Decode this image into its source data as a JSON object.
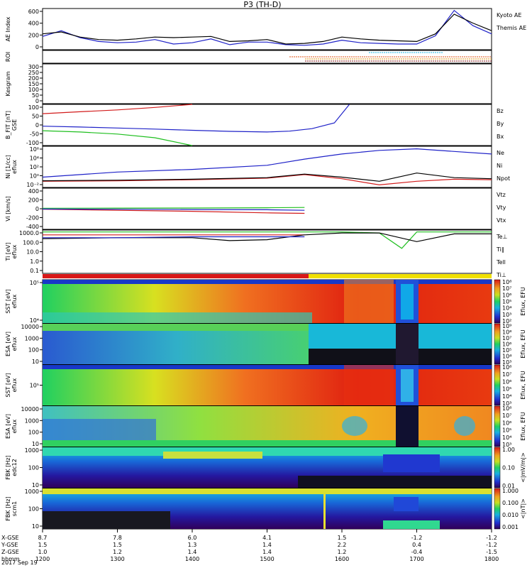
{
  "chart_data": {
    "type": "line",
    "title": "P3 (TH-D)",
    "date_label": "2017 Sep 19",
    "x_axis": {
      "name": "hhmm",
      "ticks": [
        "1200",
        "1300",
        "1400",
        "1500",
        "1600",
        "1700",
        "1800"
      ],
      "extra_rows": [
        {
          "name": "X-GSE",
          "values": [
            "8.7",
            "7.8",
            "6.0",
            "4.1",
            "1.5",
            "-1.2",
            "-1.2"
          ]
        },
        {
          "name": "Y-GSE",
          "values": [
            "1.5",
            "1.5",
            "1.3",
            "1.4",
            "2.2",
            "0.4",
            "-1.2"
          ]
        },
        {
          "name": "Z-GSE",
          "values": [
            "1.0",
            "1.2",
            "1.4",
            "1.4",
            "1.2",
            "-0.4",
            "-1.5"
          ]
        }
      ]
    },
    "panels": [
      {
        "id": "ae",
        "ylabel": "AE Index",
        "yticks": [
          "0",
          "200",
          "400",
          "600"
        ],
        "ylim": [
          0,
          650
        ],
        "series": [
          {
            "name": "Kyoto AE",
            "color": "#1f22c8",
            "x": [
              12.0,
              12.25,
              12.5,
              12.75,
              13.0,
              13.25,
              13.5,
              13.75,
              14.0,
              14.25,
              14.5,
              14.75,
              15.0,
              15.25,
              15.5,
              15.75,
              16.0,
              16.25,
              16.5,
              16.75,
              17.0,
              17.25,
              17.5,
              17.75,
              18.0
            ],
            "values": [
              210,
              300,
              190,
              130,
              110,
              120,
              160,
              90,
              110,
              170,
              80,
              120,
              120,
              80,
              70,
              90,
              150,
              110,
              100,
              90,
              90,
              220,
              620,
              380,
              250
            ]
          },
          {
            "name": "Themis AE",
            "color": "#000000",
            "x": [
              12.0,
              12.25,
              12.5,
              12.75,
              13.0,
              13.25,
              13.5,
              13.75,
              14.0,
              14.25,
              14.5,
              14.75,
              15.0,
              15.25,
              15.5,
              15.75,
              16.0,
              16.25,
              16.5,
              16.75,
              17.0,
              17.25,
              17.5,
              17.75,
              18.0
            ],
            "values": [
              250,
              280,
              200,
              160,
              150,
              170,
              200,
              190,
              200,
              210,
              130,
              140,
              160,
              90,
              100,
              130,
              200,
              170,
              150,
              140,
              130,
              250,
              560,
              420,
              300
            ]
          }
        ]
      },
      {
        "id": "roi",
        "ylabel": "ROI",
        "yticks": [],
        "ylim": [
          0,
          1
        ]
      },
      {
        "id": "kesgram",
        "ylabel": "Kesgram",
        "yticks": [
          "0",
          "50",
          "100",
          "150",
          "200",
          "250",
          "300"
        ],
        "ylim": [
          0,
          300
        ]
      },
      {
        "id": "bfit",
        "ylabel": "B_FIT [nT]",
        "unit": "GSE",
        "yticks": [
          "-100",
          "-50",
          "0",
          "50",
          "100"
        ],
        "ylim": [
          -100,
          100
        ],
        "series": [
          {
            "name": "Bz",
            "color": "#d21b1b",
            "x": [
              12.0,
              12.5,
              13.0,
              13.5,
              14.0
            ],
            "values": [
              55,
              64,
              73,
              85,
              100
            ]
          },
          {
            "name": "By",
            "color": "#1fbf1f",
            "x": [
              12.0,
              12.5,
              13.0,
              13.5,
              14.0
            ],
            "values": [
              -28,
              -34,
              -44,
              -62,
              -100
            ]
          },
          {
            "name": "Bx",
            "color": "#1f22c8",
            "x": [
              12.0,
              12.5,
              13.0,
              13.5,
              14.0,
              14.5,
              15.0,
              15.3,
              15.6,
              15.9,
              16.1
            ],
            "values": [
              -6,
              -10,
              -15,
              -20,
              -26,
              -31,
              -34,
              -30,
              -18,
              10,
              100
            ]
          }
        ]
      },
      {
        "id": "ni",
        "ylabel": "Ni [1/cc]",
        "unit": "eflux",
        "yticks": [
          "10^-2",
          "10^0",
          "10^2",
          "10^4",
          "10^6"
        ],
        "ylim": [
          -2,
          6
        ],
        "series": [
          {
            "name": "Ne",
            "color": "#d21b1b",
            "x": [
              12.0,
              13.0,
              14.0,
              15.0,
              15.5,
              16.0,
              16.5,
              17.0,
              17.5,
              18.0
            ],
            "values": [
              -0.8,
              -0.7,
              -0.5,
              -0.2,
              0.5,
              -0.3,
              -1.5,
              -0.8,
              -0.4,
              -0.5
            ]
          },
          {
            "name": "Ni",
            "color": "#000000",
            "x": [
              12.0,
              13.0,
              14.0,
              15.0,
              15.5,
              16.0,
              16.5,
              17.0,
              17.5,
              18.0
            ],
            "values": [
              -0.7,
              -0.6,
              -0.4,
              -0.1,
              0.6,
              0,
              -0.8,
              0.8,
              -0.1,
              -0.3
            ]
          },
          {
            "name": "Npot",
            "color": "#1f22c8",
            "x": [
              12.0,
              13.0,
              14.0,
              15.0,
              15.5,
              16.0,
              16.5,
              17.0,
              17.5,
              18.0
            ],
            "values": [
              0,
              1,
              1.5,
              2.3,
              3.5,
              4.5,
              5.2,
              5.5,
              5.0,
              4.5
            ]
          }
        ]
      },
      {
        "id": "vi",
        "ylabel": "Vi [km/s]",
        "yticks": [
          "-400",
          "-200",
          "0",
          "200",
          "400"
        ],
        "ylim": [
          -400,
          400
        ],
        "series": [
          {
            "name": "Vtz",
            "color": "#d21b1b",
            "x": [
              12.0,
              13.0,
              14.0,
              15.0,
              15.5
            ],
            "values": [
              -10,
              -30,
              -50,
              -80,
              -90
            ]
          },
          {
            "name": "Vty",
            "color": "#1fbf1f",
            "x": [
              12.0,
              13.0,
              14.0,
              15.0,
              15.5
            ],
            "values": [
              10,
              12,
              14,
              20,
              25
            ]
          },
          {
            "name": "Vtx",
            "color": "#1f22c8",
            "x": [
              12.0,
              13.0,
              14.0,
              15.0,
              15.5
            ],
            "values": [
              -5,
              -10,
              -15,
              -20,
              -30
            ]
          }
        ]
      },
      {
        "id": "ti",
        "ylabel": "Ti [eV]",
        "unit": "eflux",
        "yticks": [
          "0.1",
          "1.0",
          "10.0",
          "100.0",
          "1000.0"
        ],
        "ylim": [
          -1,
          3.5
        ],
        "series": [
          {
            "name": "Te⊥",
            "color": "#d21b1b",
            "x": [
              12.0,
              15.5
            ],
            "values": [
              3.0,
              3.0
            ]
          },
          {
            "name": "Ti∥",
            "color": "#1fbf1f",
            "x": [
              12.0,
              13.0,
              14.0,
              15.0,
              16.0,
              16.5,
              16.8,
              17.0,
              17.5,
              18.0
            ],
            "values": [
              3.3,
              3.3,
              3.3,
              3.3,
              3.3,
              3.2,
              1.6,
              3.3,
              3.3,
              3.3
            ]
          },
          {
            "name": "Tell",
            "color": "#000000",
            "x": [
              12.0,
              13.0,
              14.0,
              14.5,
              15.0,
              15.5,
              16.0,
              16.5,
              17.0,
              17.5,
              18.0
            ],
            "values": [
              2.6,
              2.7,
              2.7,
              2.4,
              2.5,
              3.0,
              3.2,
              3.2,
              2.3,
              3.1,
              3.1
            ]
          },
          {
            "name": "Ti⊥",
            "color": "#1f22c8",
            "x": [
              12.0,
              13.0,
              14.0,
              15.0,
              15.5
            ],
            "values": [
              2.7,
              2.7,
              2.8,
              2.8,
              2.8
            ]
          }
        ]
      },
      {
        "id": "sst_e",
        "ylabel": "SST [eV]",
        "unit": "eflux",
        "yticks": [
          "10^4",
          "10^5"
        ],
        "colorbar": "Eflux, EFU",
        "cb_ticks": [
          "10^2",
          "10^3",
          "10^4",
          "10^5",
          "10^6",
          "10^7",
          "10^8"
        ]
      },
      {
        "id": "esa_e",
        "ylabel": "ESA [eV]",
        "unit": "eflux",
        "yticks": [
          "10",
          "100",
          "1000",
          "10000"
        ],
        "colorbar": "Eflux, EFU",
        "cb_ticks": [
          "10^3",
          "10^4",
          "10^5",
          "10^6",
          "10^7",
          "10^8",
          "10^9"
        ]
      },
      {
        "id": "sst_i",
        "ylabel": "SST [eV]",
        "unit": "eflux",
        "yticks": [
          "10^5"
        ],
        "colorbar": "Eflux, EFU",
        "cb_ticks": [
          "10^3",
          "10^4",
          "10^5",
          "10^6",
          "10^7",
          "10^8"
        ]
      },
      {
        "id": "esa_i",
        "ylabel": "ESA [eV]",
        "unit": "eflux",
        "yticks": [
          "10",
          "100",
          "1000",
          "10000"
        ],
        "colorbar": "Eflux, EFU",
        "cb_ticks": [
          "10^3",
          "10^4",
          "10^5",
          "10^6",
          "10^7",
          "10^8"
        ]
      },
      {
        "id": "fbk_e",
        "ylabel": "FBK [Hz]",
        "unit": "edc12",
        "yticks": [
          "10",
          "100",
          "1000"
        ],
        "colorbar": "<|mV/m|>",
        "cb_ticks": [
          "0.01",
          "0.10",
          "1.00"
        ]
      },
      {
        "id": "fbk_b",
        "ylabel": "FBK [Hz]",
        "unit": "scm1",
        "yticks": [
          "10",
          "100",
          "1000"
        ],
        "colorbar": "<|nT|>",
        "cb_ticks": [
          "0.001",
          "0.010",
          "0.100",
          "1.000"
        ]
      }
    ]
  }
}
